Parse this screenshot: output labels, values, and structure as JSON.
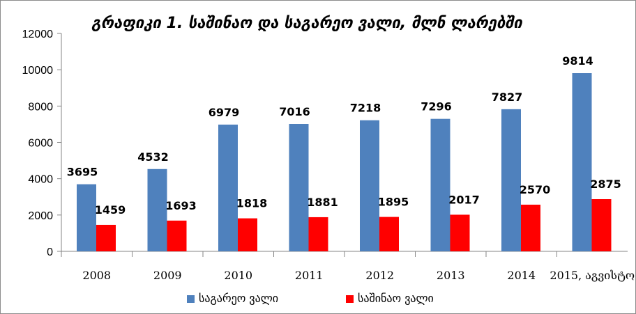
{
  "chart_data": {
    "type": "bar",
    "title": "გრაფიკი 1. საშინაო და საგარეო ვალი, მლნ ლარებში",
    "xlabel": "",
    "ylabel": "",
    "categories": [
      "2008",
      "2009",
      "2010",
      "2011",
      "2012",
      "2013",
      "2014",
      "2015, აგვისტო"
    ],
    "series": [
      {
        "name": "საგარეო ვალი",
        "color": "#4f81bd",
        "values": [
          3695,
          4532,
          6979,
          7016,
          7218,
          7296,
          7827,
          9814
        ]
      },
      {
        "name": "საშინაო ვალი",
        "color": "#ff0000",
        "values": [
          1459,
          1693,
          1818,
          1881,
          1895,
          2017,
          2570,
          2875
        ]
      }
    ],
    "ylim": [
      0,
      12000
    ],
    "y_ticks": [
      "0",
      "2000",
      "4000",
      "6000",
      "8000",
      "10000",
      "12000"
    ],
    "grid": false,
    "legend": "bottom",
    "data_labels": true
  }
}
